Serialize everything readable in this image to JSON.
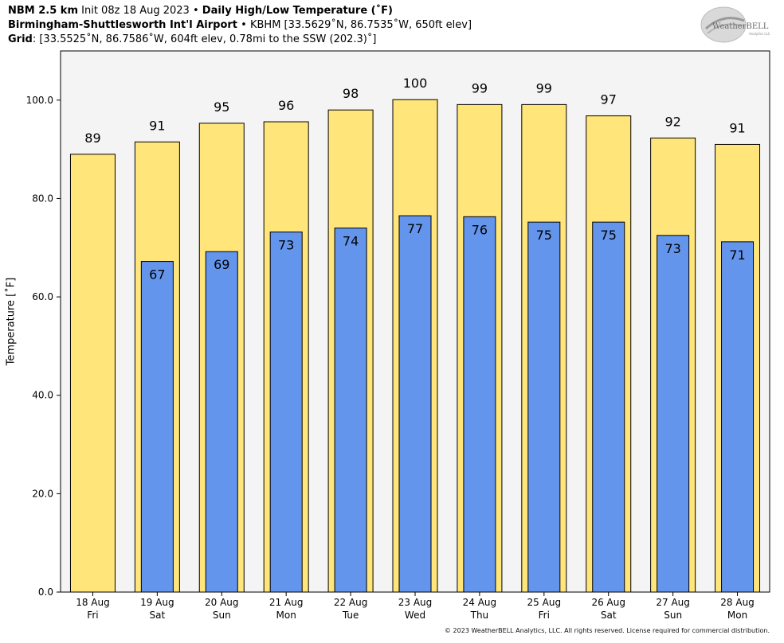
{
  "header": {
    "line1": {
      "model": "NBM 2.5 km",
      "init": "Init 08z 18 Aug 2023",
      "sep": "•",
      "product": "Daily High/Low Temperature (˚F)"
    },
    "line2": {
      "station": "Birmingham-Shuttlesworth Int'l Airport",
      "sep": "•",
      "detail": "KBHM [33.5629˚N, 86.7535˚W, 650ft elev]"
    },
    "line3": {
      "label": "Grid",
      "detail": ": [33.5525˚N, 86.7586˚W, 604ft elev, 0.78mi to the SSW (202.3)˚]"
    }
  },
  "logo": {
    "text": "WeatherBELL",
    "subtext": "Analytics LLC"
  },
  "copyright": "© 2023 WeatherBELL Analytics, LLC. All rights reserved. License required for commercial distribution.",
  "colors": {
    "high": "#FFE57A",
    "low": "#6495ED",
    "plot_bg": "#F4F4F4",
    "edge": "#000000"
  },
  "chart_data": {
    "type": "bar",
    "ylabel": "Temperature [˚F]",
    "ylim": [
      0,
      110
    ],
    "yticks": [
      0,
      20,
      40,
      60,
      80,
      100
    ],
    "ytick_labels": [
      "0.0",
      "20.0",
      "40.0",
      "60.0",
      "80.0",
      "100.0"
    ],
    "grid": false,
    "categories": [
      [
        "18 Aug",
        "Fri"
      ],
      [
        "19 Aug",
        "Sat"
      ],
      [
        "20 Aug",
        "Sun"
      ],
      [
        "21 Aug",
        "Mon"
      ],
      [
        "22 Aug",
        "Tue"
      ],
      [
        "23 Aug",
        "Wed"
      ],
      [
        "24 Aug",
        "Thu"
      ],
      [
        "25 Aug",
        "Fri"
      ],
      [
        "26 Aug",
        "Sat"
      ],
      [
        "27 Aug",
        "Sun"
      ],
      [
        "28 Aug",
        "Mon"
      ]
    ],
    "series": [
      {
        "key": "high",
        "values": [
          89,
          91.5,
          95.3,
          95.6,
          98,
          100.1,
          99.1,
          99.1,
          96.8,
          92.3,
          91
        ],
        "labels": [
          "89",
          "91",
          "95",
          "96",
          "98",
          "100",
          "99",
          "99",
          "97",
          "92",
          "91"
        ]
      },
      {
        "key": "low",
        "values": [
          null,
          67.2,
          69.2,
          73.2,
          74,
          76.5,
          76.3,
          75.2,
          75.2,
          72.5,
          71.2
        ],
        "labels": [
          null,
          "67",
          "69",
          "73",
          "74",
          "77",
          "76",
          "75",
          "75",
          "73",
          "71"
        ]
      }
    ]
  }
}
